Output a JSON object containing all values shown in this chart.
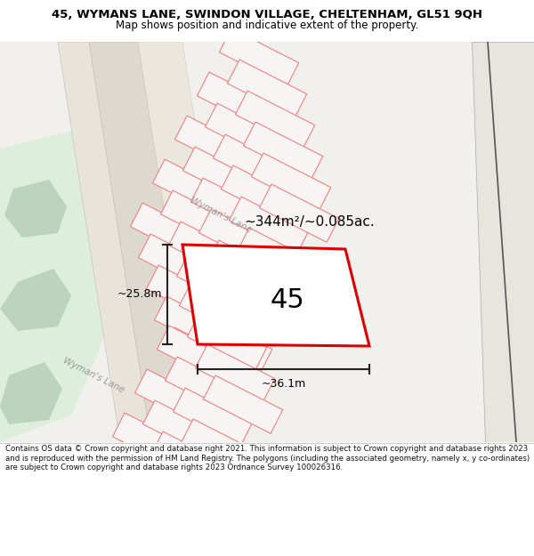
{
  "title_line1": "45, WYMANS LANE, SWINDON VILLAGE, CHELTENHAM, GL51 9QH",
  "title_line2": "Map shows position and indicative extent of the property.",
  "footer_text": "Contains OS data © Crown copyright and database right 2021. This information is subject to Crown copyright and database rights 2023 and is reproduced with the permission of HM Land Registry. The polygons (including the associated geometry, namely x, y co-ordinates) are subject to Crown copyright and database rights 2023 Ordnance Survey 100026316.",
  "map_bg": "#f2f0ec",
  "plot_outline_color": "#dd0000",
  "plot_fill_color": "#ffffff",
  "plot_label": "45",
  "area_text": "~344m²/~0.085ac.",
  "width_text": "~36.1m",
  "height_text": "~25.8m",
  "road_label_upper": "Wyman's Lane",
  "road_label_lower": "Wyman's Lane",
  "neighbor_outline_color": "#f08080",
  "neighbor_fill_color": "#f8f4f4",
  "dim_line_color": "#222222",
  "green_light": "#ddeedd",
  "green_dark": "#bbd4bb",
  "road_fill": "#e8e4dc",
  "road_edge": "#c8c4bc",
  "footer_text_color": "#111111"
}
